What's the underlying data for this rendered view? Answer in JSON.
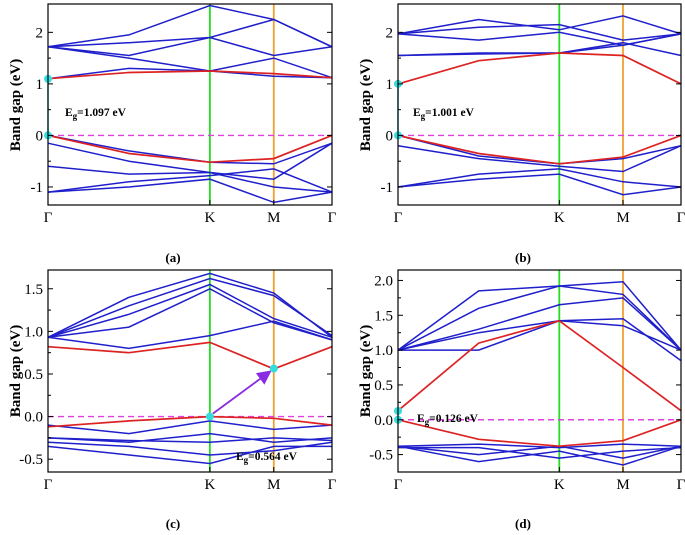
{
  "figure": {
    "ylabel": "Band gap (eV)",
    "colors": {
      "band_valence_conduction": "#dd2222",
      "band_other": "#1f1fcc",
      "k_line": "#22dd22",
      "m_line": "#f0a030",
      "fermi": "#e040e0",
      "point": "#33dddd",
      "arrow": "#8a2be2"
    }
  },
  "chart_data": [
    {
      "type": "line",
      "panel_label": "(a)",
      "xlabel_ticks": [
        "Γ",
        "K",
        "M",
        "Γ"
      ],
      "k_positions": [
        0,
        0.57,
        0.795,
        1
      ],
      "ylim": [
        -1.35,
        2.55
      ],
      "yticks": [
        -1,
        0,
        1,
        2
      ],
      "ytick_labels": [
        "-1",
        "0",
        "1",
        "2"
      ],
      "fermi_level": 0,
      "annotation": "Eg=1.097 eV",
      "gap_points": [
        {
          "x": 0,
          "y": 1.097
        },
        {
          "x": 0,
          "y": 0
        }
      ],
      "arrow": null,
      "red_bands": [
        [
          1.1,
          1.22,
          1.25,
          1.2,
          1.12
        ],
        [
          0,
          -0.35,
          -0.52,
          -0.45,
          0
        ]
      ],
      "blue_bands": [
        [
          1.72,
          1.95,
          2.52,
          2.25,
          1.72
        ],
        [
          1.72,
          1.8,
          1.9,
          2.25,
          1.72
        ],
        [
          1.72,
          1.55,
          1.9,
          1.55,
          1.72
        ],
        [
          1.72,
          1.5,
          1.25,
          1.5,
          1.12
        ],
        [
          1.1,
          1.3,
          1.25,
          1.15,
          1.12
        ],
        [
          0,
          -0.3,
          -0.52,
          -0.55,
          -0.15
        ],
        [
          -0.15,
          -0.5,
          -0.72,
          -0.85,
          -0.15
        ],
        [
          -0.6,
          -0.75,
          -0.72,
          -1.0,
          -1.1
        ],
        [
          -1.1,
          -0.9,
          -0.78,
          -0.65,
          -1.1
        ],
        [
          -1.1,
          -1.0,
          -0.85,
          -1.3,
          -1.1
        ]
      ]
    },
    {
      "type": "line",
      "panel_label": "(b)",
      "xlabel_ticks": [
        "Γ",
        "K",
        "M",
        "Γ"
      ],
      "k_positions": [
        0,
        0.57,
        0.795,
        1
      ],
      "ylim": [
        -1.35,
        2.55
      ],
      "yticks": [
        -1,
        0,
        1,
        2
      ],
      "ytick_labels": [
        "-1",
        "0",
        "1",
        "2"
      ],
      "fermi_level": 0,
      "annotation": "Eg=1.001 eV",
      "gap_points": [
        {
          "x": 0,
          "y": 1.001
        },
        {
          "x": 0,
          "y": 0
        }
      ],
      "arrow": null,
      "red_bands": [
        [
          1.0,
          1.45,
          1.6,
          1.55,
          1.0
        ],
        [
          0,
          -0.35,
          -0.55,
          -0.42,
          0
        ]
      ],
      "blue_bands": [
        [
          1.97,
          2.25,
          2.05,
          2.32,
          1.97
        ],
        [
          1.97,
          2.1,
          2.15,
          1.85,
          1.97
        ],
        [
          1.97,
          1.85,
          2.0,
          1.75,
          1.97
        ],
        [
          1.55,
          1.6,
          1.6,
          1.8,
          1.55
        ],
        [
          1.55,
          1.58,
          1.6,
          1.75,
          1.97
        ],
        [
          0,
          -0.4,
          -0.55,
          -0.45,
          -0.2
        ],
        [
          -0.2,
          -0.45,
          -0.6,
          -0.7,
          -0.2
        ],
        [
          -1.0,
          -0.75,
          -0.65,
          -0.9,
          -1.0
        ],
        [
          -1.0,
          -0.85,
          -0.75,
          -1.15,
          -1.0
        ]
      ]
    },
    {
      "type": "line",
      "panel_label": "(c)",
      "xlabel_ticks": [
        "Γ",
        "K",
        "M",
        "Γ"
      ],
      "k_positions": [
        0,
        0.57,
        0.795,
        1
      ],
      "ylim": [
        -0.65,
        1.72
      ],
      "yticks": [
        -0.5,
        0,
        0.5,
        1.0,
        1.5
      ],
      "ytick_labels": [
        "-0.5",
        "0.0",
        "0.5",
        "1.0",
        "1.5"
      ],
      "fermi_level": 0,
      "annotation": "Eg=0.564 eV",
      "gap_points": [
        {
          "x": 0.57,
          "y": 0
        },
        {
          "x": 0.795,
          "y": 0.564
        }
      ],
      "arrow": {
        "from": {
          "x": 0.57,
          "y": 0
        },
        "to": {
          "x": 0.795,
          "y": 0.564
        }
      },
      "red_bands": [
        [
          0.82,
          0.75,
          0.87,
          0.56,
          0.82
        ],
        [
          -0.12,
          -0.05,
          0,
          -0.02,
          -0.1
        ]
      ],
      "blue_bands": [
        [
          0.93,
          1.4,
          1.68,
          1.45,
          0.93
        ],
        [
          0.93,
          1.3,
          1.62,
          1.42,
          0.95
        ],
        [
          0.93,
          1.2,
          1.55,
          1.15,
          0.93
        ],
        [
          0.93,
          1.05,
          1.5,
          1.1,
          0.9
        ],
        [
          0.93,
          0.8,
          0.95,
          1.12,
          0.9
        ],
        [
          -0.1,
          -0.2,
          -0.05,
          -0.15,
          -0.1
        ],
        [
          -0.25,
          -0.3,
          -0.2,
          -0.3,
          -0.25
        ],
        [
          -0.3,
          -0.35,
          -0.45,
          -0.4,
          -0.3
        ],
        [
          -0.35,
          -0.45,
          -0.55,
          -0.35,
          -0.35
        ],
        [
          -0.25,
          -0.28,
          -0.3,
          -0.25,
          -0.28
        ]
      ]
    },
    {
      "type": "line",
      "panel_label": "(d)",
      "xlabel_ticks": [
        "Γ",
        "K",
        "M",
        "Γ"
      ],
      "k_positions": [
        0,
        0.57,
        0.795,
        1
      ],
      "ylim": [
        -0.75,
        2.15
      ],
      "yticks": [
        -0.5,
        0,
        0.5,
        1.0,
        1.5,
        2.0
      ],
      "ytick_labels": [
        "-0.5",
        "0.0",
        "0.5",
        "1.0",
        "1.5",
        "2.0"
      ],
      "fermi_level": 0,
      "annotation": "Eg=0.126 eV",
      "gap_points": [
        {
          "x": 0,
          "y": 0.126
        },
        {
          "x": 0,
          "y": 0
        }
      ],
      "arrow": null,
      "red_bands": [
        [
          0.13,
          1.1,
          1.42,
          0.75,
          0.13
        ],
        [
          0,
          -0.28,
          -0.38,
          -0.3,
          0
        ]
      ],
      "blue_bands": [
        [
          1.0,
          1.85,
          1.92,
          1.98,
          1.0
        ],
        [
          1.0,
          1.6,
          1.92,
          1.8,
          1.0
        ],
        [
          1.0,
          1.3,
          1.65,
          1.75,
          1.0
        ],
        [
          1.0,
          1.25,
          1.42,
          1.45,
          0.85
        ],
        [
          1.0,
          1.0,
          1.42,
          1.35,
          1.0
        ],
        [
          -0.38,
          -0.5,
          -0.38,
          -0.55,
          -0.38
        ],
        [
          -0.38,
          -0.6,
          -0.45,
          -0.65,
          -0.38
        ],
        [
          -0.4,
          -0.4,
          -0.55,
          -0.45,
          -0.4
        ],
        [
          -0.38,
          -0.35,
          -0.4,
          -0.35,
          -0.38
        ]
      ]
    }
  ]
}
